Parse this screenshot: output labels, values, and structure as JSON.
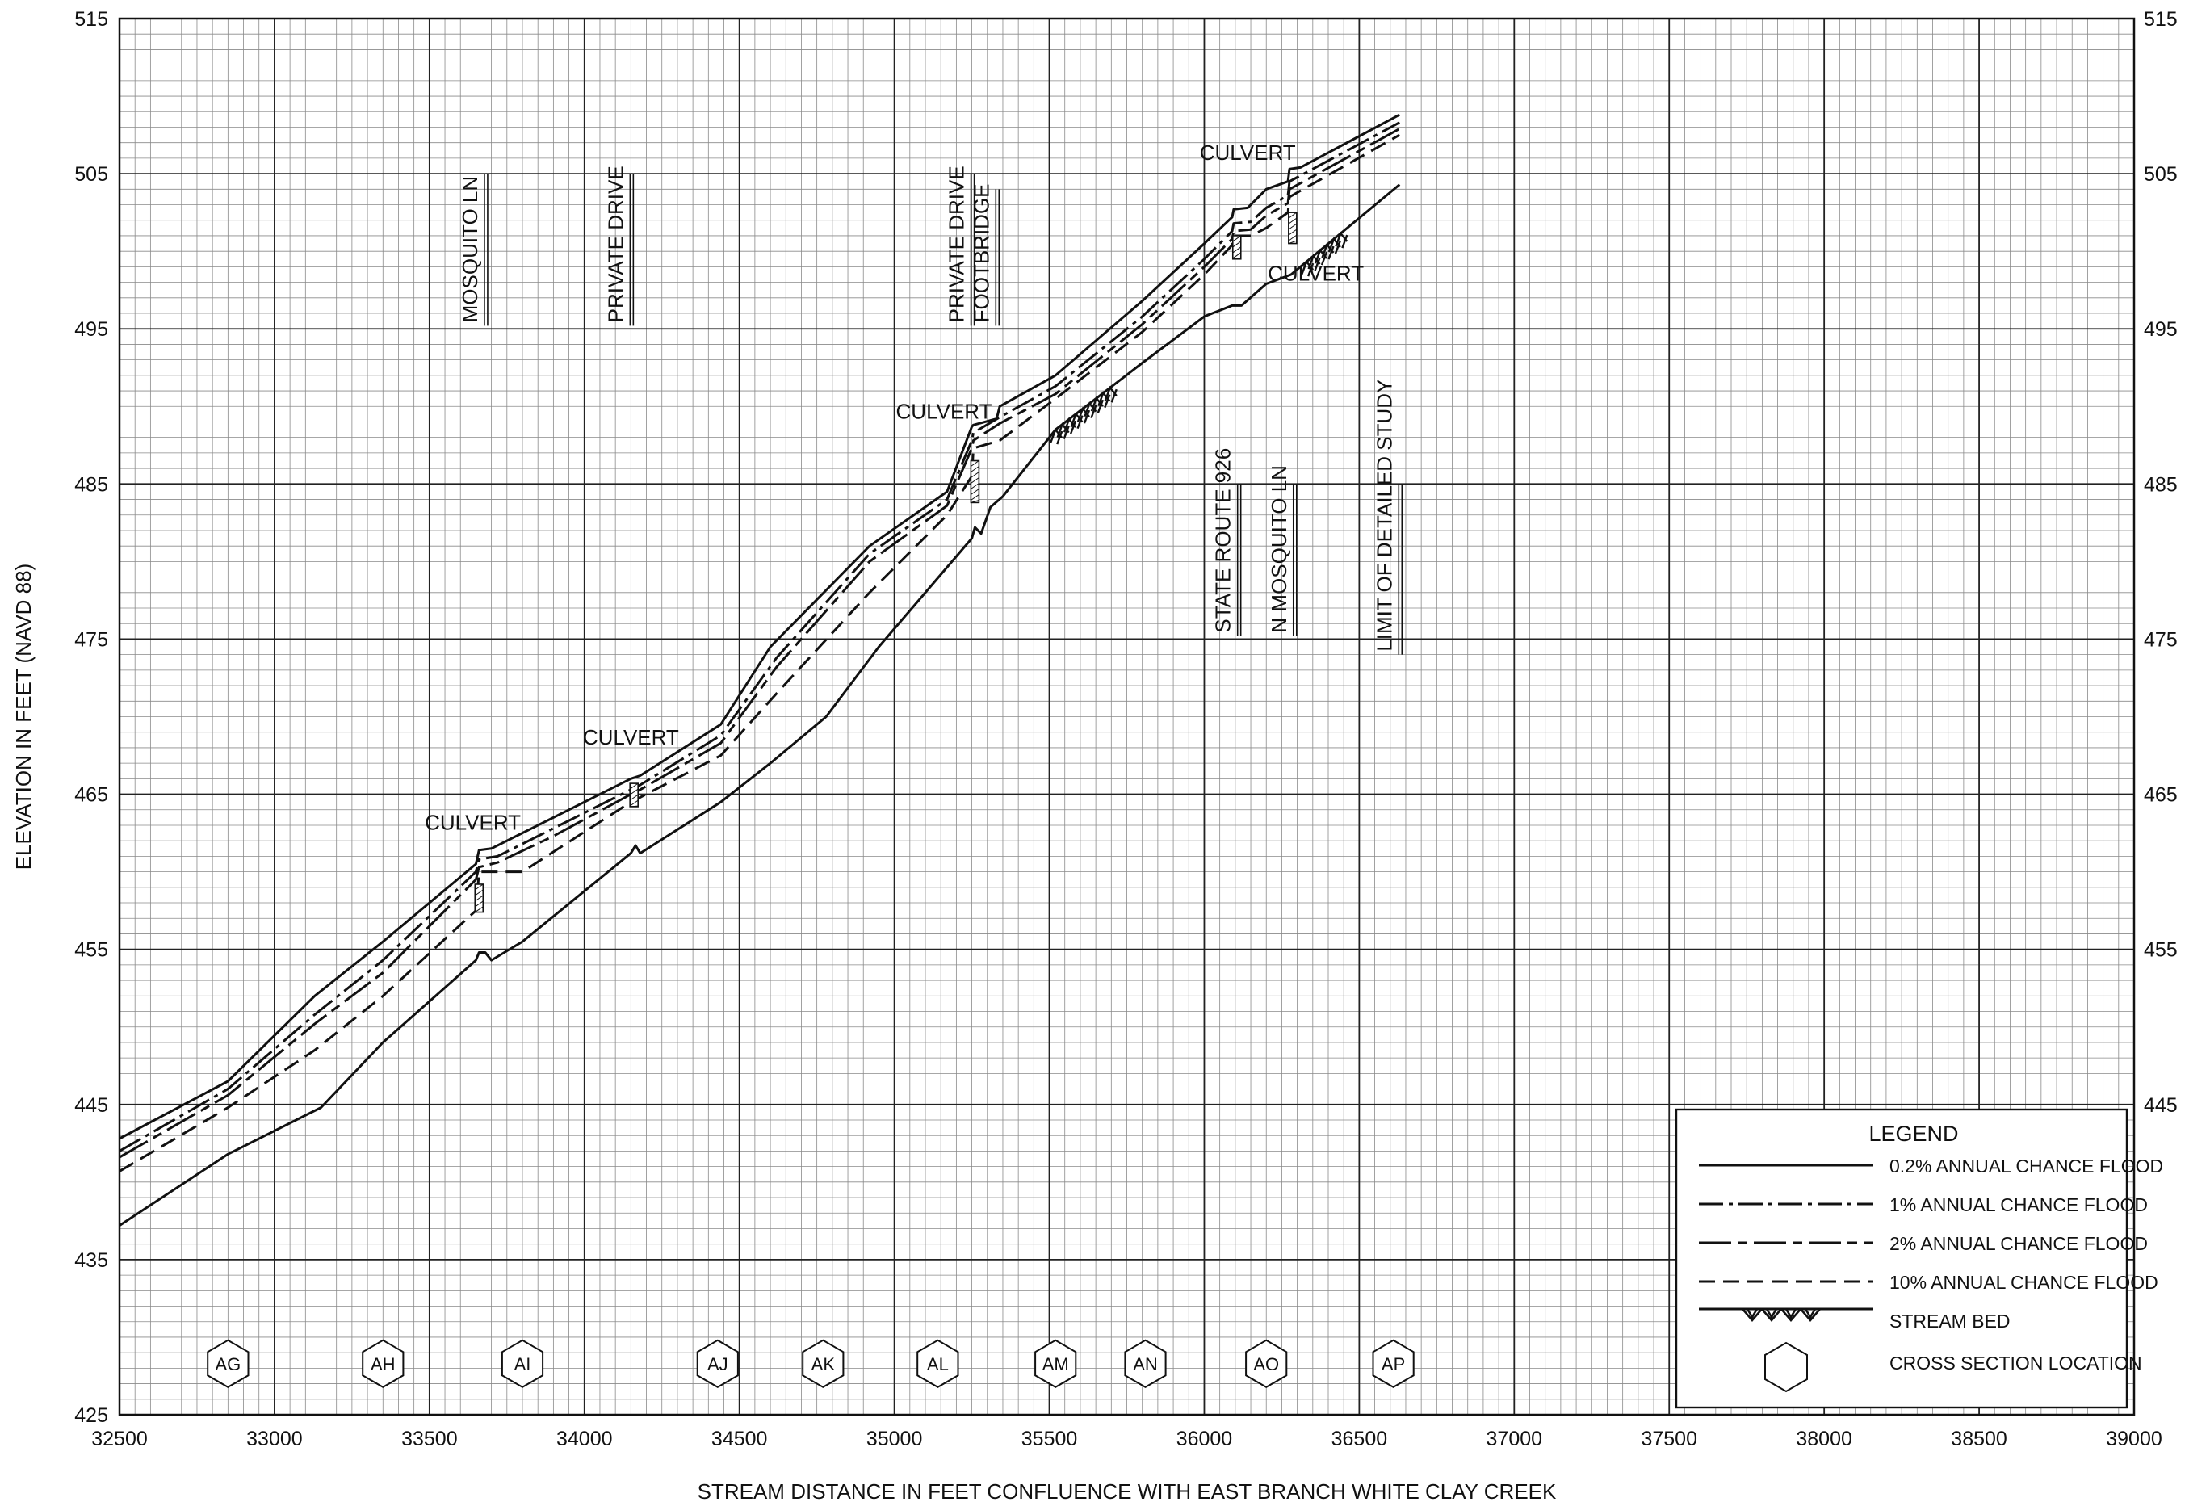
{
  "chart_data": {
    "type": "line",
    "xlabel": "STREAM DISTANCE IN FEET CONFLUENCE WITH EAST BRANCH WHITE CLAY CREEK",
    "ylabel": "ELEVATION IN FEET (NAVD 88)",
    "xlim": [
      32500,
      39000
    ],
    "ylim": [
      425,
      515
    ],
    "x_ticks": [
      32500,
      33000,
      33500,
      34000,
      34500,
      35000,
      35500,
      36000,
      36500,
      37000,
      37500,
      38000,
      38500,
      39000
    ],
    "x_tick_labels": [
      "32500",
      "33000",
      "33500",
      "34000",
      "34500",
      "35000",
      "35500",
      "36000",
      "36500",
      "37000",
      "37500",
      "38000",
      "38500",
      "39000"
    ],
    "y_ticks": [
      425,
      435,
      445,
      455,
      465,
      475,
      485,
      495,
      505,
      515
    ],
    "y_tick_labels": [
      "425",
      "435",
      "445",
      "455",
      "465",
      "475",
      "485",
      "495",
      "505",
      "515"
    ],
    "right_y_tick_labels": [
      "445",
      "455",
      "465",
      "475",
      "485",
      "495",
      "505",
      "515"
    ],
    "grid": true,
    "minor_grid_step": {
      "x": 50,
      "y": 1
    },
    "major_grid_step": {
      "x": 500,
      "y": 10
    },
    "series": [
      {
        "name": "0.2% ANNUAL CHANCE FLOOD",
        "style": "solid",
        "x": [
          32500,
          32850,
          33130,
          33350,
          33650,
          33660,
          33700,
          34000,
          34150,
          34180,
          34440,
          34600,
          34920,
          35170,
          35250,
          35255,
          35330,
          35340,
          35520,
          35800,
          36000,
          36090,
          36095,
          36140,
          36200,
          36270,
          36275,
          36310,
          36630
        ],
        "y": [
          442.8,
          446.5,
          452.0,
          455.5,
          460.5,
          461.4,
          461.5,
          464.5,
          466.0,
          466.2,
          469.5,
          474.5,
          481.0,
          484.5,
          488.7,
          488.8,
          489.2,
          490.0,
          492.0,
          496.8,
          500.5,
          502.2,
          502.7,
          502.8,
          504.0,
          504.5,
          505.3,
          505.4,
          508.8
        ]
      },
      {
        "name": "1% ANNUAL CHANCE FLOOD",
        "style": "dash-dot",
        "x": [
          32500,
          32850,
          33130,
          33350,
          33650,
          33660,
          33720,
          33900,
          34150,
          34180,
          34440,
          34620,
          34920,
          35170,
          35250,
          35255,
          35340,
          35520,
          35800,
          36000,
          36090,
          36095,
          36150,
          36200,
          36270,
          36275,
          36630
        ],
        "y": [
          442.0,
          446.0,
          450.8,
          454.3,
          460.0,
          460.8,
          461.0,
          462.8,
          465.3,
          465.6,
          468.8,
          473.8,
          480.5,
          484.0,
          487.8,
          488.3,
          489.3,
          491.3,
          495.8,
          499.5,
          501.3,
          501.8,
          501.9,
          502.8,
          503.6,
          504.5,
          508.3
        ]
      },
      {
        "name": "2% ANNUAL CHANCE FLOOD",
        "style": "dash-dot-long",
        "x": [
          32500,
          32850,
          33130,
          33350,
          33650,
          33660,
          33720,
          33900,
          34150,
          34180,
          34440,
          34620,
          34920,
          35170,
          35250,
          35255,
          35340,
          35520,
          35800,
          36000,
          36090,
          36095,
          36150,
          36200,
          36270,
          36275,
          36630
        ],
        "y": [
          441.6,
          445.6,
          450.2,
          453.5,
          459.5,
          460.3,
          460.6,
          462.3,
          465.0,
          465.3,
          468.3,
          473.2,
          480.0,
          483.6,
          487.3,
          487.8,
          488.9,
          490.8,
          495.3,
          499.0,
          500.8,
          501.3,
          501.4,
          502.3,
          503.1,
          504.0,
          507.9
        ]
      },
      {
        "name": "10% ANNUAL CHANCE FLOOD",
        "style": "dashed",
        "x": [
          32500,
          32850,
          33130,
          33350,
          33650,
          33660,
          33800,
          34150,
          34180,
          34440,
          34620,
          34920,
          35170,
          35250,
          35255,
          35340,
          35520,
          35800,
          36000,
          36090,
          36095,
          36150,
          36200,
          36270,
          36275,
          36630
        ],
        "y": [
          440.7,
          444.8,
          448.5,
          452.0,
          457.5,
          460.0,
          460.0,
          464.5,
          464.8,
          467.5,
          471.5,
          478.0,
          483.0,
          485.5,
          487.3,
          487.8,
          490.5,
          494.8,
          498.5,
          500.4,
          501.0,
          501.0,
          501.5,
          502.5,
          503.5,
          507.5
        ]
      },
      {
        "name": "STREAM BED",
        "style": "solid",
        "x": [
          32500,
          32850,
          33150,
          33350,
          33650,
          33660,
          33680,
          33700,
          33800,
          34150,
          34165,
          34180,
          34440,
          34600,
          34780,
          34950,
          35250,
          35260,
          35280,
          35310,
          35350,
          35520,
          35800,
          36000,
          36090,
          36120,
          36200,
          36280,
          36630
        ],
        "y": [
          437.2,
          441.8,
          444.8,
          449.0,
          454.3,
          454.8,
          454.8,
          454.3,
          455.5,
          461.2,
          461.7,
          461.2,
          464.5,
          467.0,
          470.0,
          474.5,
          481.5,
          482.2,
          481.8,
          483.5,
          484.2,
          488.5,
          492.8,
          495.8,
          496.5,
          496.5,
          497.9,
          498.5,
          504.3
        ]
      }
    ],
    "stream_bed_hatch_ranges": [
      [
        35520,
        35700
      ],
      [
        36330,
        36440
      ]
    ],
    "structure_hatch": [
      {
        "x": 33660,
        "y_bottom": 457.4,
        "y_top": 459.2
      },
      {
        "x": 34160,
        "y_bottom": 464.2,
        "y_top": 465.7
      },
      {
        "x": 35260,
        "y_bottom": 483.8,
        "y_top": 486.5
      },
      {
        "x": 36105,
        "y_bottom": 499.5,
        "y_top": 501.0
      },
      {
        "x": 36285,
        "y_bottom": 500.5,
        "y_top": 502.5
      }
    ],
    "annotations": [
      {
        "text": "CULVERT",
        "x": 33640,
        "y": 462.7,
        "anchor": "middle"
      },
      {
        "text": "CULVERT",
        "x": 34150,
        "y": 468.2,
        "anchor": "middle"
      },
      {
        "text": "CULVERT",
        "x": 35160,
        "y": 489.2,
        "anchor": "middle"
      },
      {
        "text": "CULVERT",
        "x": 36140,
        "y": 505.9,
        "anchor": "middle"
      },
      {
        "text": "CULVERT",
        "x": 36360,
        "y": 498.1,
        "anchor": "middle"
      }
    ],
    "vertical_labels": [
      {
        "text": "MOSQUITO LN",
        "x": 33680,
        "y_top": 505.0,
        "y_bottom": 495.2
      },
      {
        "text": "PRIVATE DRIVE",
        "x": 34150,
        "y_top": 505.0,
        "y_bottom": 495.2
      },
      {
        "text": "PRIVATE DRIVE",
        "x": 35250,
        "y_top": 505.0,
        "y_bottom": 495.2
      },
      {
        "text": "FOOTBRIDGE",
        "x": 35330,
        "y_top": 504.0,
        "y_bottom": 495.2
      },
      {
        "text": "STATE ROUTE 926",
        "x": 36110,
        "y_top": 485.0,
        "y_bottom": 475.2
      },
      {
        "text": "N MOSQUITO LN",
        "x": 36290,
        "y_top": 485.0,
        "y_bottom": 475.2
      },
      {
        "text": "LIMIT OF DETAILED STUDY",
        "x": 36630,
        "y_top": 485.0,
        "y_bottom": 474.0
      }
    ],
    "cross_sections": [
      {
        "id": "AG",
        "x": 32850
      },
      {
        "id": "AH",
        "x": 33350
      },
      {
        "id": "AI",
        "x": 33800
      },
      {
        "id": "AJ",
        "x": 34430
      },
      {
        "id": "AK",
        "x": 34770
      },
      {
        "id": "AL",
        "x": 35140
      },
      {
        "id": "AM",
        "x": 35520
      },
      {
        "id": "AN",
        "x": 35810
      },
      {
        "id": "AO",
        "x": 36200
      },
      {
        "id": "AP",
        "x": 36610
      }
    ],
    "legend": {
      "title": "LEGEND",
      "position": "bottom-right",
      "entries": [
        {
          "label": "0.2% ANNUAL CHANCE FLOOD",
          "style": "solid"
        },
        {
          "label": "1% ANNUAL CHANCE FLOOD",
          "style": "dash-dot"
        },
        {
          "label": "2% ANNUAL CHANCE FLOOD",
          "style": "dash-dot-long"
        },
        {
          "label": "10% ANNUAL CHANCE FLOOD",
          "style": "dashed"
        },
        {
          "label": "STREAM BED",
          "style": "streambed"
        },
        {
          "label": "CROSS SECTION LOCATION",
          "style": "hexagon"
        }
      ]
    }
  }
}
